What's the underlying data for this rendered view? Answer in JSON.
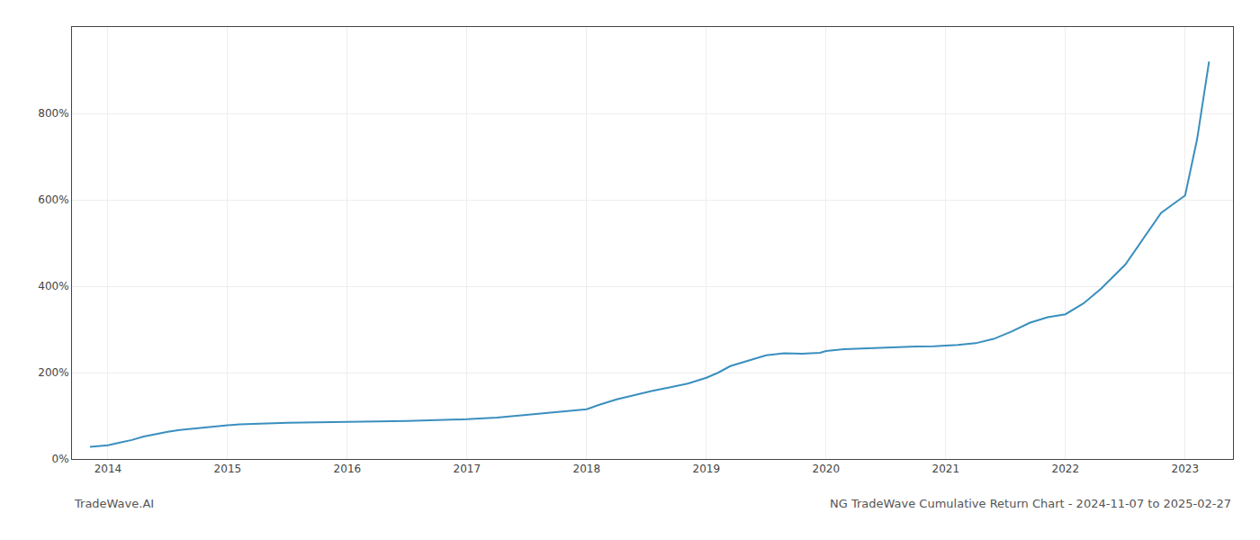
{
  "chart_data": {
    "type": "line",
    "title": "NG TradeWave Cumulative Return Chart - 2024-11-07 to 2025-02-27",
    "annotations": [
      {
        "text": "TradeWave.AI"
      }
    ],
    "x": [
      2013.85,
      2014.0,
      2014.1,
      2014.2,
      2014.3,
      2014.4,
      2014.5,
      2014.6,
      2014.7,
      2014.85,
      2014.95,
      2015.0,
      2015.1,
      2015.25,
      2015.5,
      2015.75,
      2015.9,
      2016.0,
      2016.25,
      2016.5,
      2016.75,
      2017.0,
      2017.25,
      2017.5,
      2017.75,
      2018.0,
      2018.1,
      2018.25,
      2018.4,
      2018.55,
      2018.7,
      2018.85,
      2019.0,
      2019.1,
      2019.2,
      2019.35,
      2019.5,
      2019.65,
      2019.8,
      2019.95,
      2020.0,
      2020.15,
      2020.3,
      2020.5,
      2020.7,
      2020.9,
      2021.0,
      2021.1,
      2021.25,
      2021.4,
      2021.55,
      2021.7,
      2021.85,
      2022.0,
      2022.15,
      2022.3,
      2022.5,
      2022.65,
      2022.8,
      2022.95,
      2023.0,
      2023.1,
      2023.2
    ],
    "values": [
      28,
      32,
      38,
      44,
      52,
      58,
      63,
      67,
      70,
      74,
      76,
      78,
      80,
      82,
      84,
      85,
      86,
      86,
      87,
      88,
      90,
      92,
      96,
      102,
      108,
      115,
      125,
      138,
      148,
      158,
      166,
      175,
      188,
      200,
      215,
      228,
      240,
      245,
      244,
      246,
      250,
      254,
      256,
      258,
      260,
      261,
      262,
      264,
      268,
      278,
      295,
      315,
      328,
      335,
      360,
      395,
      450,
      510,
      570,
      600,
      610,
      740,
      920
    ],
    "color": "#3a8fbf",
    "xlim": [
      2013.7,
      2023.4
    ],
    "xticks": [
      2014,
      2015,
      2016,
      2017,
      2018,
      2019,
      2020,
      2021,
      2022,
      2023
    ],
    "ylim": [
      0,
      1000
    ],
    "yticks": [
      {
        "value": 0,
        "label": "0%"
      },
      {
        "value": 200,
        "label": "200%"
      },
      {
        "value": 400,
        "label": "400%"
      },
      {
        "value": 600,
        "label": "600%"
      },
      {
        "value": 800,
        "label": "800%"
      }
    ],
    "grid": true
  }
}
